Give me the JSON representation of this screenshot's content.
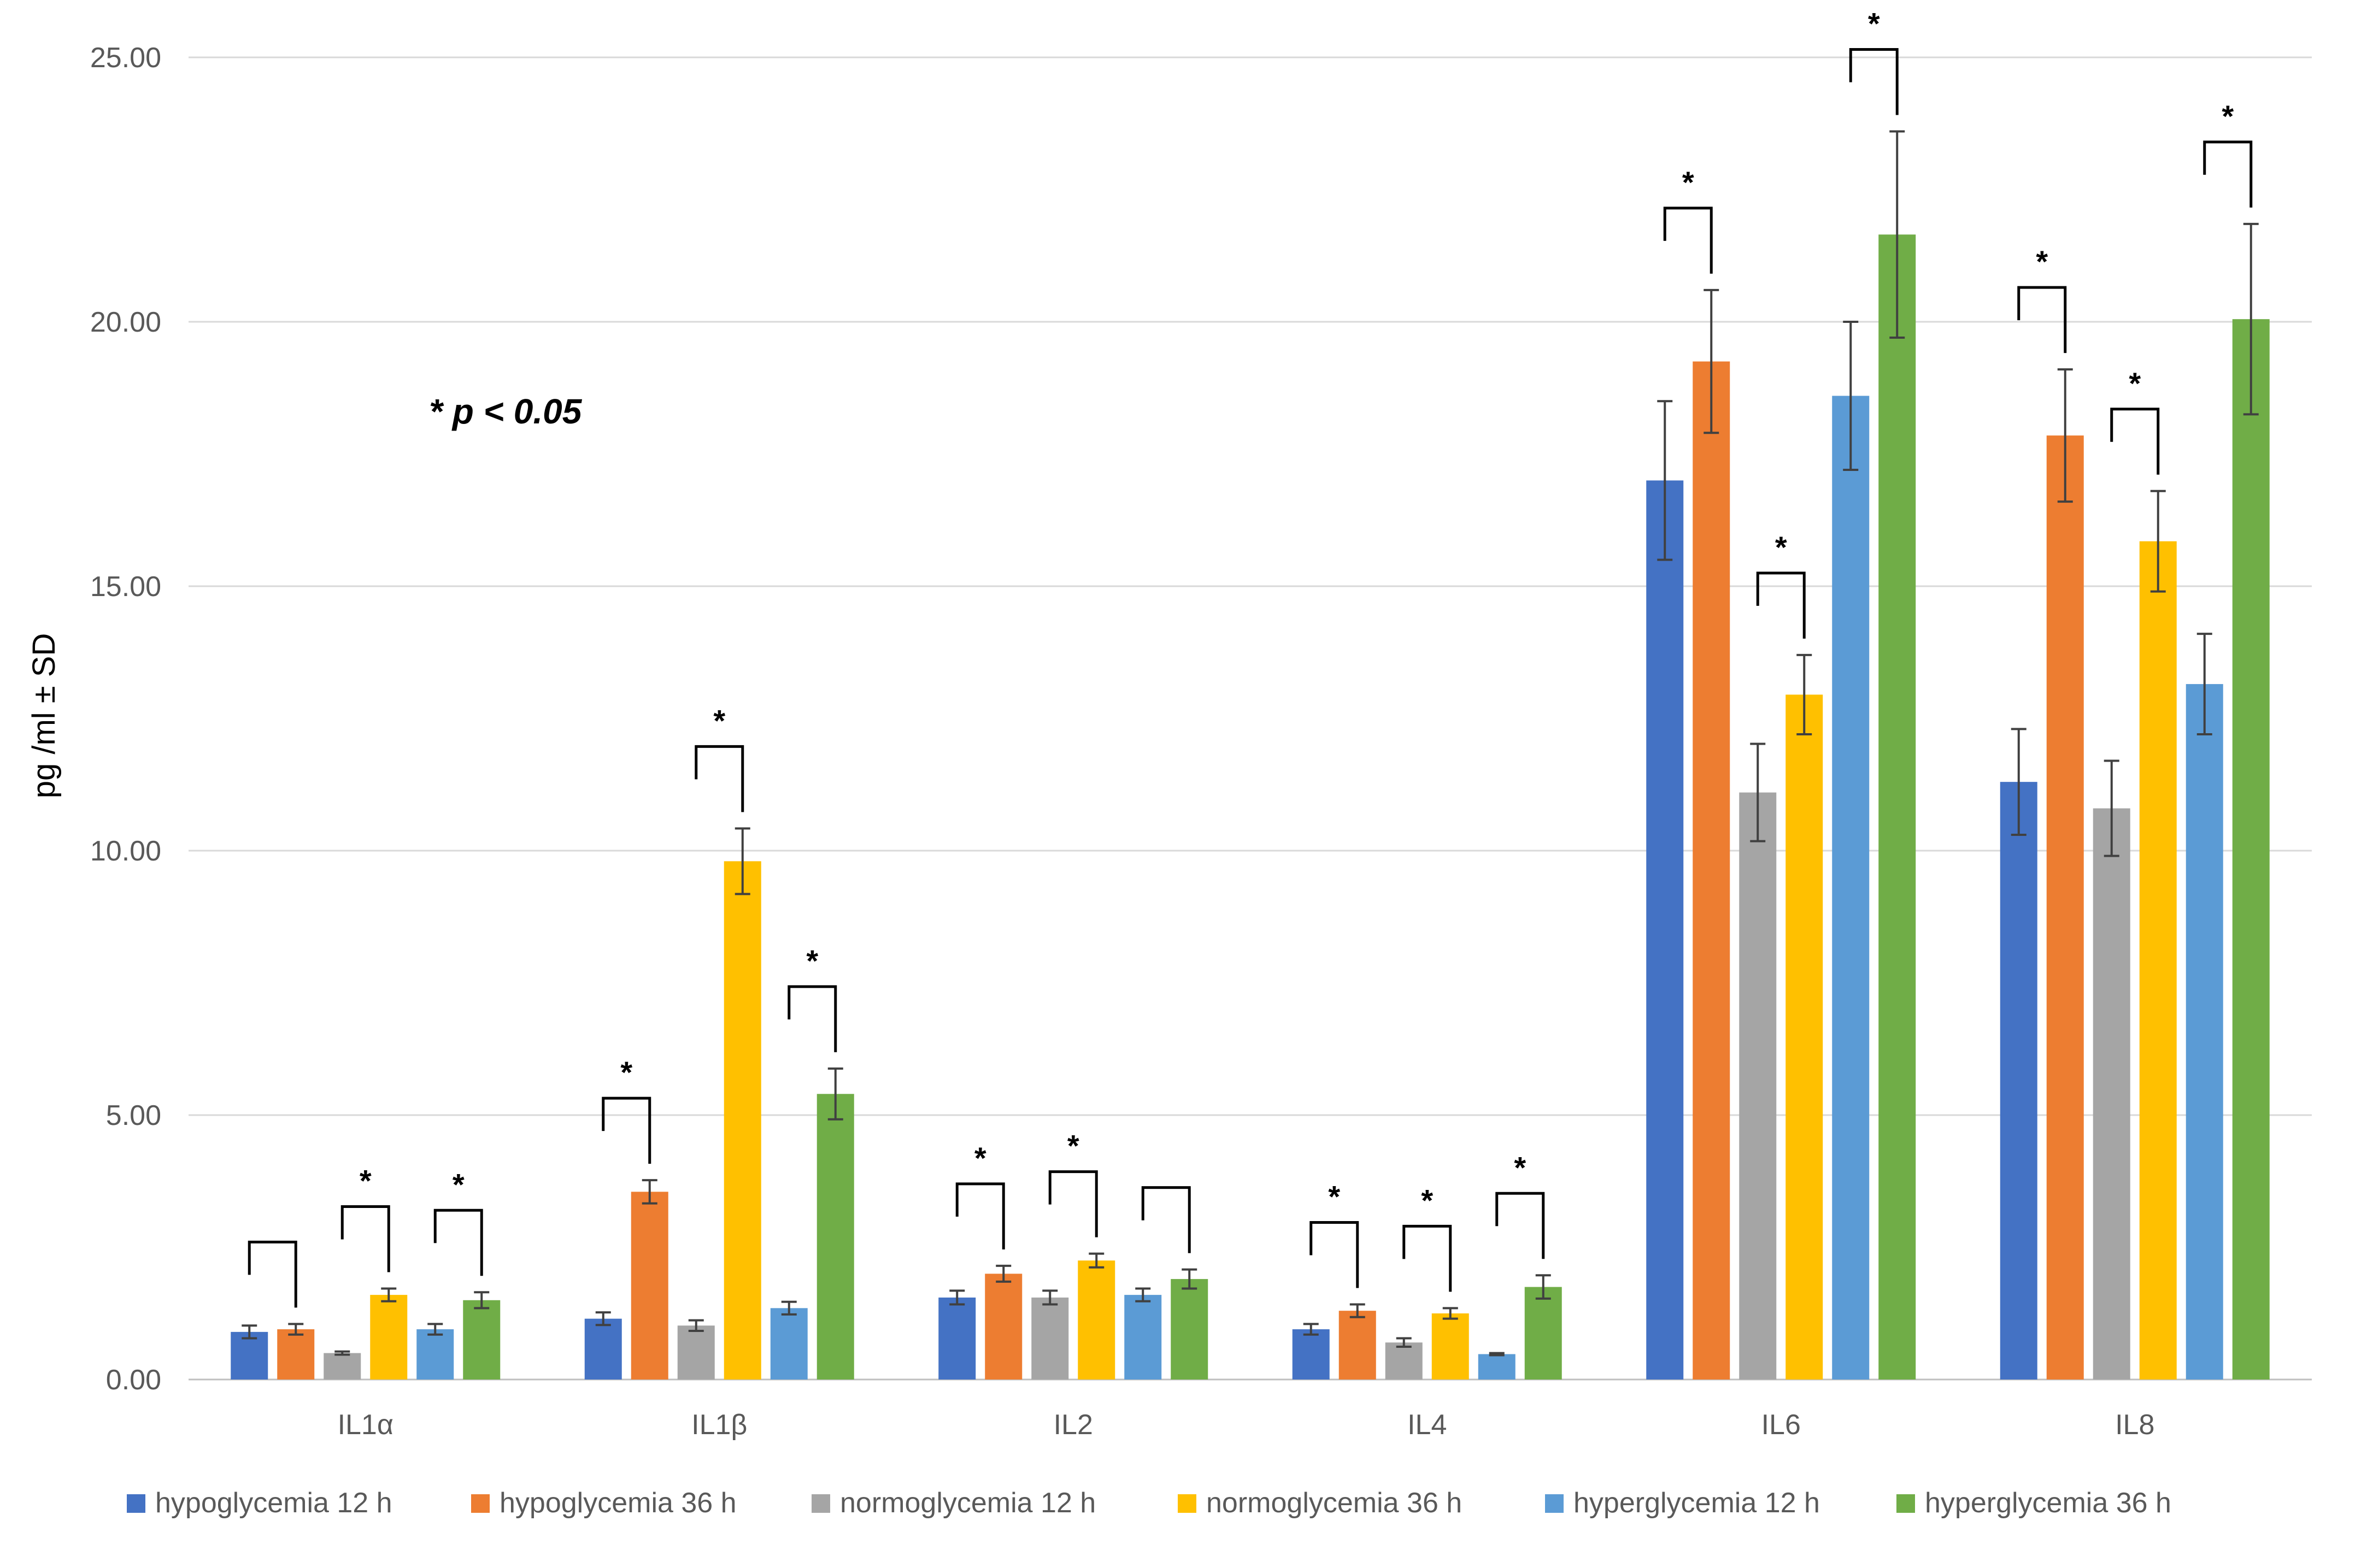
{
  "chart_data": {
    "type": "bar",
    "ylabel": "pg /ml ± SD",
    "ylim": [
      0,
      25
    ],
    "yticks": [
      "0.00",
      "5.00",
      "10.00",
      "15.00",
      "20.00",
      "25.00"
    ],
    "ytick_values": [
      0,
      5,
      10,
      15,
      20,
      25
    ],
    "grid": true,
    "legend_position": "bottom",
    "annotation": "* p < 0.05",
    "categories": [
      "IL1α",
      "IL1β",
      "IL2",
      "IL4",
      "IL6",
      "IL8"
    ],
    "series": [
      {
        "name": "hypoglycemia 12 h",
        "color": "#4472C4",
        "values": [
          0.9,
          1.15,
          1.55,
          0.95,
          17.0,
          11.3
        ],
        "errors": [
          0.12,
          0.12,
          0.13,
          0.1,
          1.5,
          1.0
        ]
      },
      {
        "name": "hypoglycemia 36 h",
        "color": "#ED7D31",
        "values": [
          0.95,
          3.55,
          2.0,
          1.3,
          19.25,
          17.85
        ],
        "errors": [
          0.1,
          0.22,
          0.15,
          0.12,
          1.35,
          1.25
        ]
      },
      {
        "name": "normoglycemia 12 h",
        "color": "#A5A5A5",
        "values": [
          0.5,
          1.02,
          1.55,
          0.7,
          11.1,
          10.8
        ],
        "errors": [
          0.03,
          0.1,
          0.13,
          0.08,
          0.92,
          0.9
        ]
      },
      {
        "name": "normoglycemia 36 h",
        "color": "#FFC000",
        "values": [
          1.6,
          9.8,
          2.25,
          1.25,
          12.95,
          15.85
        ],
        "errors": [
          0.12,
          0.62,
          0.13,
          0.1,
          0.75,
          0.95
        ]
      },
      {
        "name": "hyperglycemia 12 h",
        "color": "#5B9BD5",
        "values": [
          0.95,
          1.35,
          1.6,
          0.48,
          18.6,
          13.15
        ],
        "errors": [
          0.1,
          0.12,
          0.12,
          0.02,
          1.4,
          0.95
        ]
      },
      {
        "name": "hyperglycemia 36 h",
        "color": "#70AD47",
        "values": [
          1.5,
          5.4,
          1.9,
          1.75,
          21.65,
          20.05
        ],
        "errors": [
          0.15,
          0.48,
          0.18,
          0.22,
          1.95,
          1.8
        ]
      }
    ],
    "comparisons": [
      {
        "category": 0,
        "from": 0,
        "to": 1,
        "label": ""
      },
      {
        "category": 0,
        "from": 2,
        "to": 3,
        "label": "*"
      },
      {
        "category": 0,
        "from": 4,
        "to": 5,
        "label": "*"
      },
      {
        "category": 1,
        "from": 0,
        "to": 1,
        "label": "*"
      },
      {
        "category": 1,
        "from": 2,
        "to": 3,
        "label": "*"
      },
      {
        "category": 1,
        "from": 4,
        "to": 5,
        "label": "*"
      },
      {
        "category": 2,
        "from": 0,
        "to": 1,
        "label": "*"
      },
      {
        "category": 2,
        "from": 2,
        "to": 3,
        "label": "*"
      },
      {
        "category": 2,
        "from": 4,
        "to": 5,
        "label": ""
      },
      {
        "category": 3,
        "from": 0,
        "to": 1,
        "label": "*"
      },
      {
        "category": 3,
        "from": 2,
        "to": 3,
        "label": "*"
      },
      {
        "category": 3,
        "from": 4,
        "to": 5,
        "label": "*"
      },
      {
        "category": 4,
        "from": 0,
        "to": 1,
        "label": "*"
      },
      {
        "category": 4,
        "from": 2,
        "to": 3,
        "label": "*"
      },
      {
        "category": 4,
        "from": 4,
        "to": 5,
        "label": "*"
      },
      {
        "category": 5,
        "from": 0,
        "to": 1,
        "label": "*"
      },
      {
        "category": 5,
        "from": 2,
        "to": 3,
        "label": "*"
      },
      {
        "category": 5,
        "from": 4,
        "to": 5,
        "label": "*"
      }
    ]
  }
}
